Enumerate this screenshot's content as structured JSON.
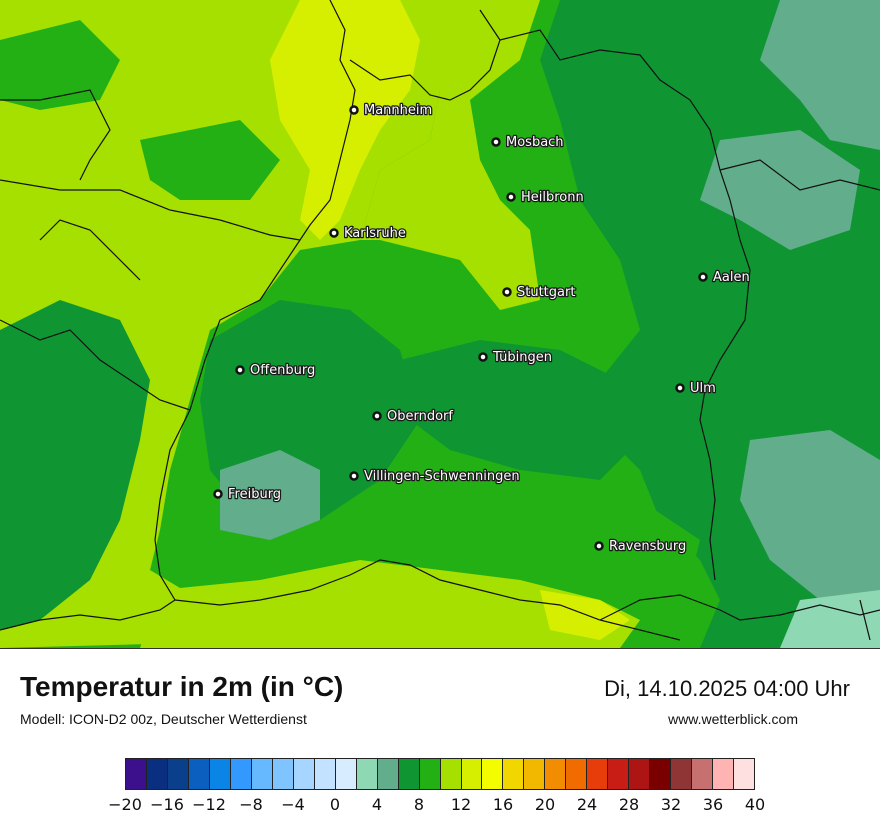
{
  "map": {
    "cities": [
      {
        "name": "Mannheim"
      },
      {
        "name": "Mosbach"
      },
      {
        "name": "Heilbronn"
      },
      {
        "name": "Karlsruhe"
      },
      {
        "name": "Aalen"
      },
      {
        "name": "Stuttgart"
      },
      {
        "name": "Tübingen"
      },
      {
        "name": "Offenburg"
      },
      {
        "name": "Ulm"
      },
      {
        "name": "Oberndorf"
      },
      {
        "name": "Villingen-Schwenningen"
      },
      {
        "name": "Freiburg"
      },
      {
        "name": "Ravensburg"
      }
    ]
  },
  "footer": {
    "title": "Temperatur in 2m (in °C)",
    "subtitle": "Modell: ICON-D2 00z, Deutscher Wetterdienst",
    "datetime": "Di, 14.10.2025 04:00 Uhr",
    "website": "www.wetterblick.com"
  },
  "legend": {
    "colors": [
      "#3c0f8c",
      "#0a2f80",
      "#0a3f8c",
      "#0a5fbf",
      "#0a85e6",
      "#3399ff",
      "#66b8ff",
      "#80c4ff",
      "#a6d6ff",
      "#c2e2ff",
      "#d8ecff",
      "#8fd8b4",
      "#62ad8c",
      "#0f9633",
      "#23b014",
      "#a6e000",
      "#d6ef00",
      "#f4fc00",
      "#f2d600",
      "#f2b800",
      "#f28c00",
      "#f06c00",
      "#e63d0a",
      "#c71d14",
      "#ad1414",
      "#7a0000",
      "#8f3535",
      "#c77070",
      "#ffb3b3",
      "#ffe0e0"
    ],
    "ticks": [
      "−20",
      "−16",
      "−12",
      "−8",
      "−4",
      "0",
      "4",
      "8",
      "12",
      "16",
      "20",
      "24",
      "28",
      "32",
      "36",
      "40"
    ]
  }
}
